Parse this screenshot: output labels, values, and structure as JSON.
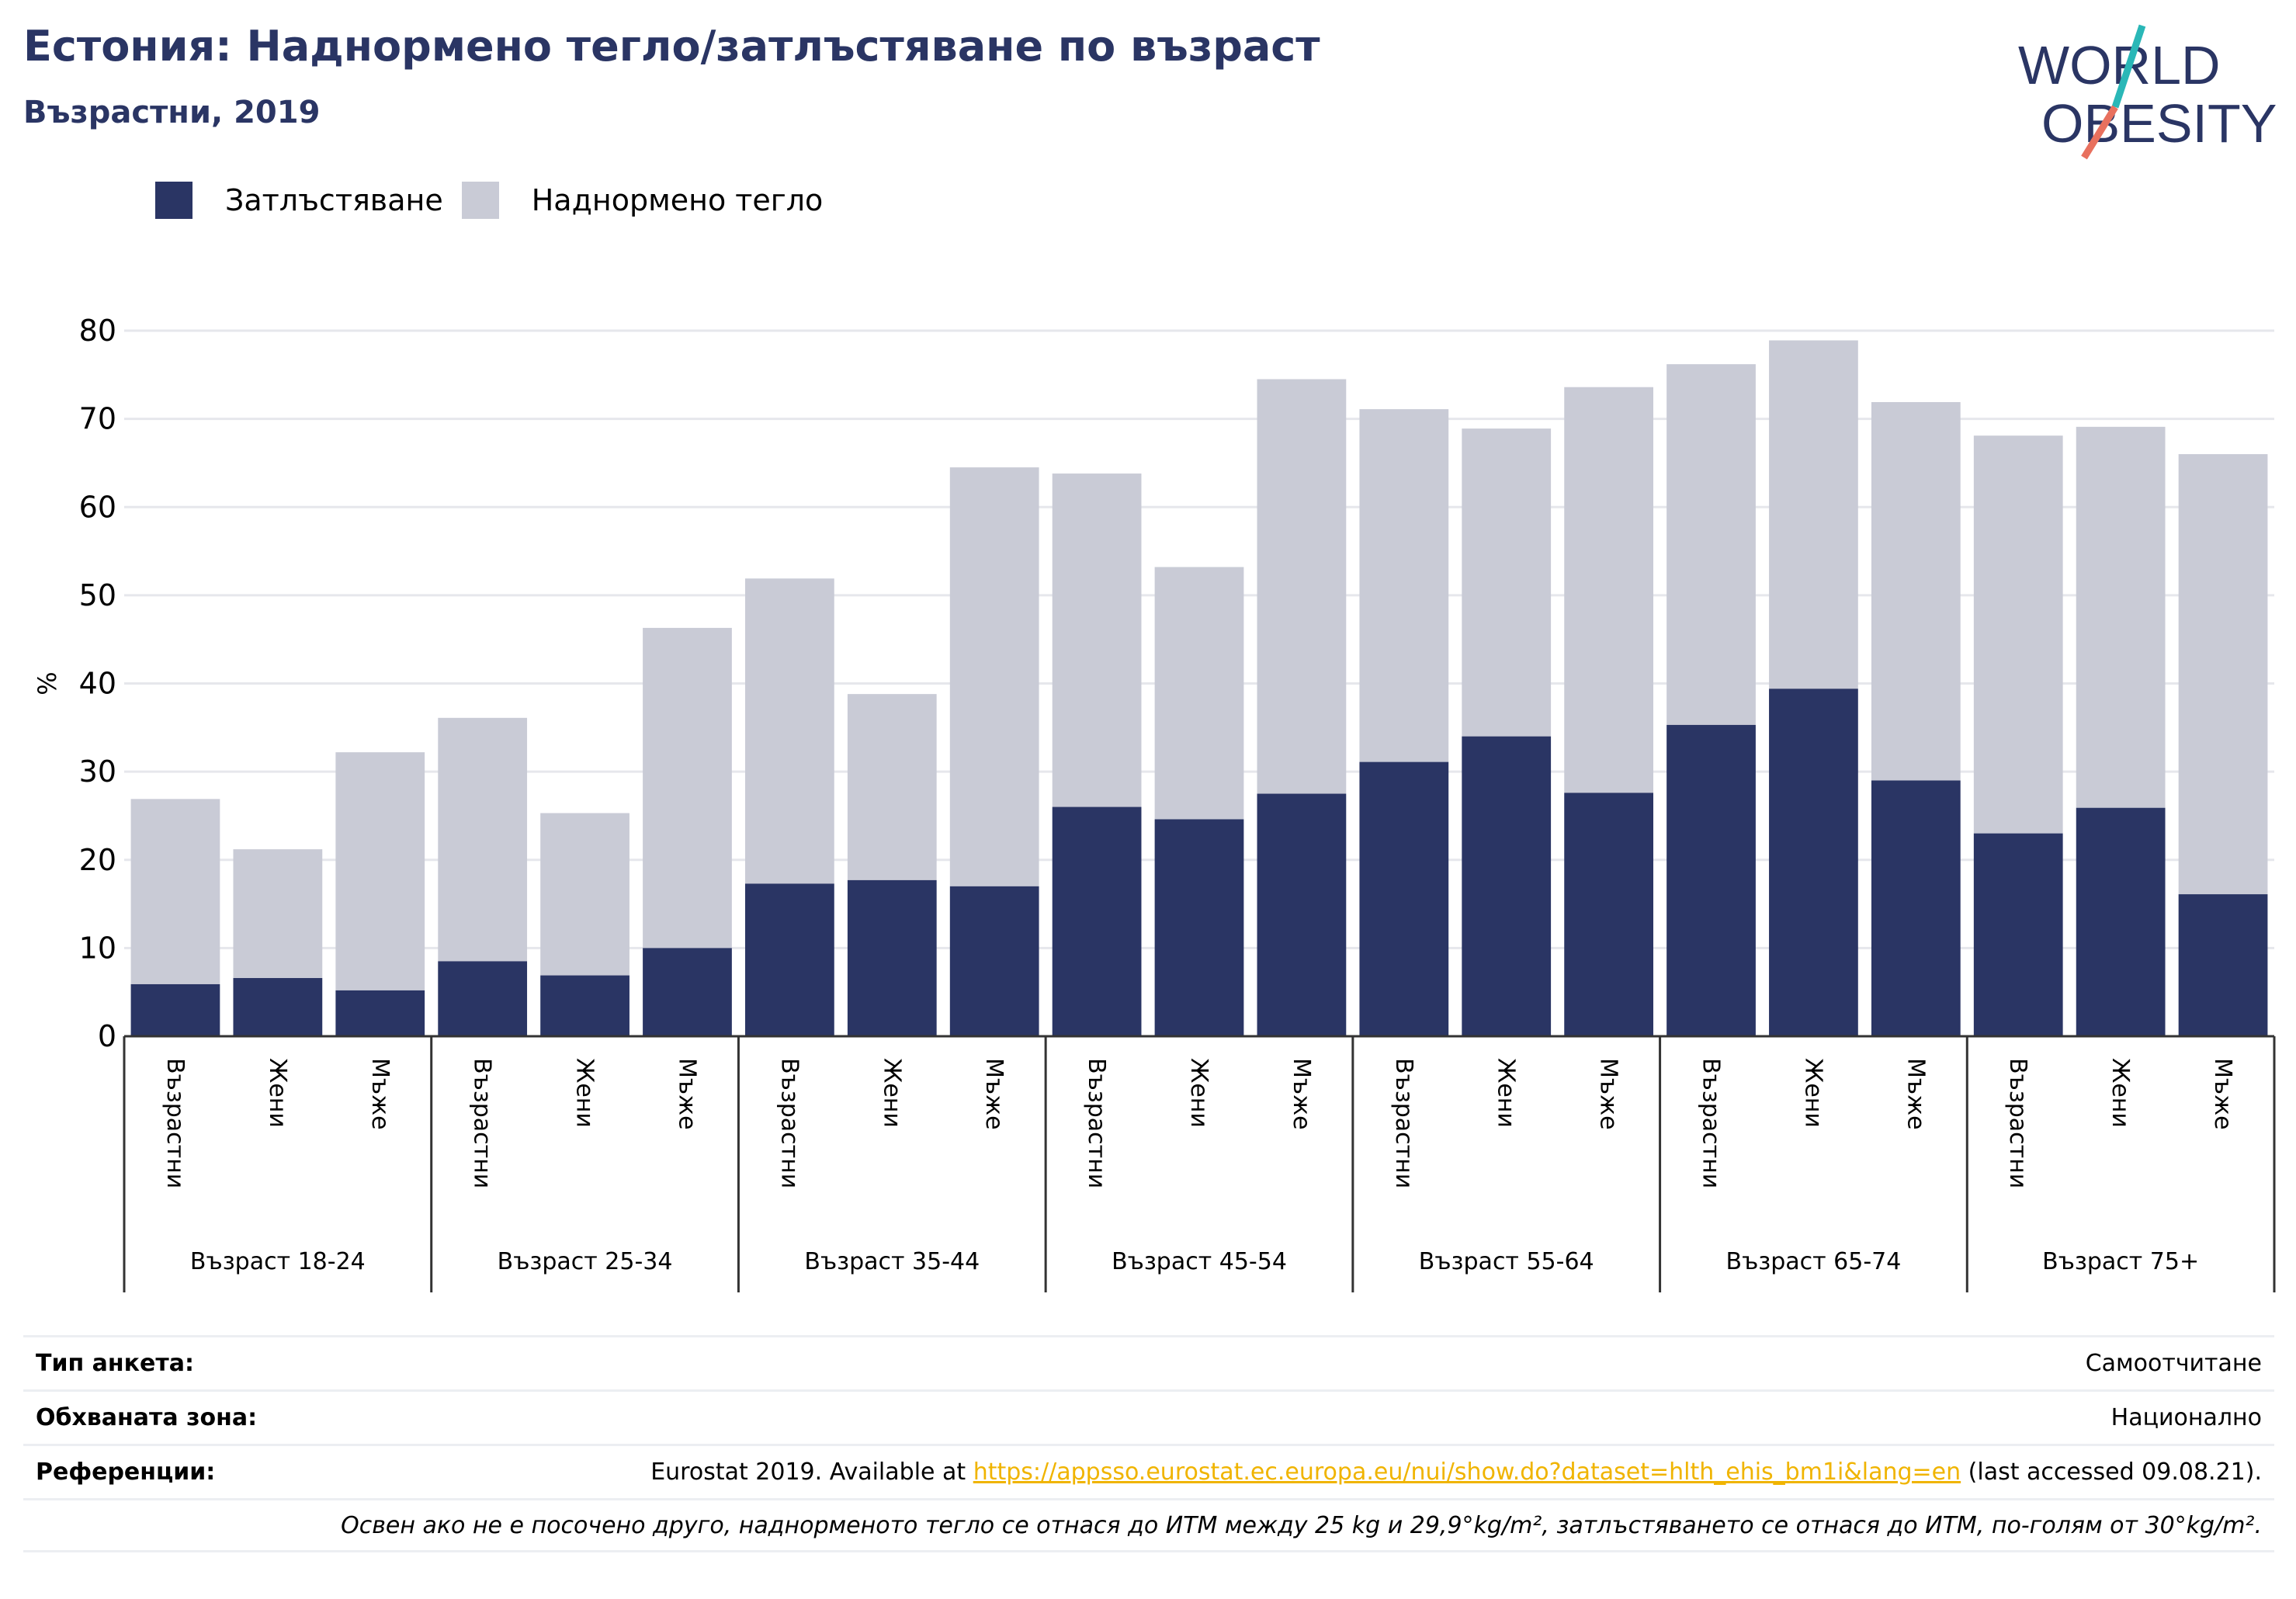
{
  "title": "Естония: Наднормено тегло/затлъстяване по възраст",
  "subtitle": "Възрастни, 2019",
  "logo": {
    "line1": "WORLD",
    "line2": "OBESITY",
    "text_color": "#2a3564",
    "slash_teal": "#2ab7b7",
    "slash_coral": "#e8705e"
  },
  "colors": {
    "obesity": "#2a3564",
    "overweight": "#c9cbd6",
    "grid": "#e6e7ec",
    "axis": "#333333"
  },
  "chart_data": {
    "type": "bar",
    "stacked": true,
    "ylabel": "%",
    "ylim": [
      0,
      80
    ],
    "yticks": [
      0,
      10,
      20,
      30,
      40,
      50,
      60,
      70,
      80
    ],
    "grid": true,
    "legend_position": "top-left",
    "series": [
      {
        "name": "Затлъстяване",
        "color_key": "obesity"
      },
      {
        "name": "Наднормено тегло",
        "color_key": "overweight"
      }
    ],
    "groups": [
      {
        "label": "Възраст 18-24",
        "bars": [
          {
            "label": "Възрастни",
            "obesity": 5.9,
            "total": 26.9
          },
          {
            "label": "Жени",
            "obesity": 6.6,
            "total": 21.2
          },
          {
            "label": "Мъже",
            "obesity": 5.2,
            "total": 32.2
          }
        ]
      },
      {
        "label": "Възраст 25-34",
        "bars": [
          {
            "label": "Възрастни",
            "obesity": 8.5,
            "total": 36.1
          },
          {
            "label": "Жени",
            "obesity": 6.9,
            "total": 25.3
          },
          {
            "label": "Мъже",
            "obesity": 10.0,
            "total": 46.3
          }
        ]
      },
      {
        "label": "Възраст 35-44",
        "bars": [
          {
            "label": "Възрастни",
            "obesity": 17.3,
            "total": 51.9
          },
          {
            "label": "Жени",
            "obesity": 17.7,
            "total": 38.8
          },
          {
            "label": "Мъже",
            "obesity": 17.0,
            "total": 64.5
          }
        ]
      },
      {
        "label": "Възраст 45-54",
        "bars": [
          {
            "label": "Възрастни",
            "obesity": 26.0,
            "total": 63.8
          },
          {
            "label": "Жени",
            "obesity": 24.6,
            "total": 53.2
          },
          {
            "label": "Мъже",
            "obesity": 27.5,
            "total": 74.5
          }
        ]
      },
      {
        "label": "Възраст 55-64",
        "bars": [
          {
            "label": "Възрастни",
            "obesity": 31.1,
            "total": 71.1
          },
          {
            "label": "Жени",
            "obesity": 34.0,
            "total": 68.9
          },
          {
            "label": "Мъже",
            "obesity": 27.6,
            "total": 73.6
          }
        ]
      },
      {
        "label": "Възраст 65-74",
        "bars": [
          {
            "label": "Възрастни",
            "obesity": 35.3,
            "total": 76.2
          },
          {
            "label": "Жени",
            "obesity": 39.4,
            "total": 78.9
          },
          {
            "label": "Мъже",
            "obesity": 29.0,
            "total": 71.9
          }
        ]
      },
      {
        "label": "Възраст 75+",
        "bars": [
          {
            "label": "Възрастни",
            "obesity": 23.0,
            "total": 68.1
          },
          {
            "label": "Жени",
            "obesity": 25.9,
            "total": 69.1
          },
          {
            "label": "Мъже",
            "obesity": 16.1,
            "total": 66.0
          }
        ]
      }
    ]
  },
  "footer": {
    "survey_type_label": "Тип анкета:",
    "survey_type_value": "Самоотчитане",
    "coverage_label": "Обхваната зона:",
    "coverage_value": "Национално",
    "references_label": "Референции:",
    "references_prefix": "Eurostat 2019. Available at ",
    "references_link": "https://appsso.eurostat.ec.europa.eu/nui/show.do?dataset=hlth_ehis_bm1i&lang=en",
    "references_suffix": " (last accessed 09.08.21).",
    "note": "Освен ако не е посочено друго, наднорменото тегло се отнася до ИТМ между 25 kg и 29,9°kg/m², затлъстяването се отнася до ИТМ, по-голям от 30°kg/m²."
  }
}
